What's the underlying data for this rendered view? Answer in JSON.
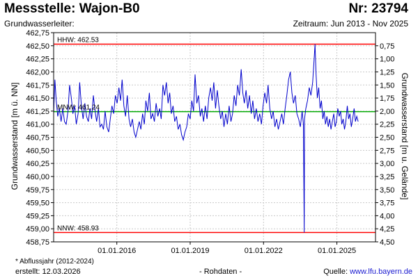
{
  "header": {
    "station": "Messstelle: Wajon-B0",
    "number": "Nr: 23794",
    "aquifer": "Grundwasserleiter:",
    "period": "Zeitraum: Jun 2013 - Nov 2025"
  },
  "footer": {
    "footnote": "* Abflussjahr (2012-2024)",
    "created": "erstellt:  12.03.2026",
    "raw": "- Rohdaten -",
    "source_prefix": "Quelle: ",
    "source_url": "www.lfu.bayern.de"
  },
  "colors": {
    "series": "#0000cc",
    "hhw": "#ff0000",
    "nnw": "#ff0000",
    "mnw": "#00aa00",
    "grid": "#c8c8c8"
  },
  "chart_data": {
    "type": "line",
    "ylabel": "Grundwasserstand [m ü. NN]",
    "ylabel_right": "Grundwasserstand [m u. Gelände]",
    "ylim": [
      458.75,
      462.75
    ],
    "xlim": [
      "2013-06-01",
      "2026-08-01"
    ],
    "yticks": [
      "462,75",
      "462,50",
      "462,25",
      "462,00",
      "461,75",
      "461,50",
      "461,25",
      "461,00",
      "460,75",
      "460,50",
      "460,25",
      "460,00",
      "459,75",
      "459,50",
      "459,25",
      "459,00",
      "458,75"
    ],
    "yticks_right": [
      "0,75",
      "1,00",
      "1,25",
      "1,50",
      "1,75",
      "2,00",
      "2,25",
      "2,50",
      "2,75",
      "3,00",
      "3,25",
      "3,50",
      "3,75",
      "4,00",
      "4,25",
      "4,50"
    ],
    "right_axis_zero_level": 463.25,
    "xticks": [
      {
        "date": "2016-01-01",
        "label": "01.01.2016"
      },
      {
        "date": "2019-01-01",
        "label": "01.01.2019"
      },
      {
        "date": "2022-01-01",
        "label": "01.01.2022"
      },
      {
        "date": "2025-01-01",
        "label": "01.01.2025"
      }
    ],
    "grid": true,
    "reference_lines": [
      {
        "key": "hhw",
        "label": "HHW: 462.53",
        "value": 462.53
      },
      {
        "key": "mnw",
        "label": "MNW: 461.24",
        "value": 461.24
      },
      {
        "key": "nnw",
        "label": "NNW: 458.93",
        "value": 458.93
      }
    ],
    "series": [
      {
        "points": [
          [
            "2013-06-01",
            461.2
          ],
          [
            "2013-06-20",
            461.85
          ],
          [
            "2013-07-10",
            461.45
          ],
          [
            "2013-08-01",
            461.15
          ],
          [
            "2013-08-25",
            461.3
          ],
          [
            "2013-09-20",
            461.05
          ],
          [
            "2013-10-15",
            461.3
          ],
          [
            "2013-11-10",
            461.05
          ],
          [
            "2013-12-05",
            461.0
          ],
          [
            "2014-01-01",
            461.25
          ],
          [
            "2014-01-25",
            461.75
          ],
          [
            "2014-02-20",
            461.5
          ],
          [
            "2014-03-15",
            461.2
          ],
          [
            "2014-04-10",
            461.35
          ],
          [
            "2014-05-05",
            461.0
          ],
          [
            "2014-06-01",
            461.2
          ],
          [
            "2014-06-25",
            461.8
          ],
          [
            "2014-07-20",
            461.35
          ],
          [
            "2014-08-15",
            461.1
          ],
          [
            "2014-09-10",
            461.4
          ],
          [
            "2014-10-05",
            461.15
          ],
          [
            "2014-11-01",
            461.05
          ],
          [
            "2014-11-25",
            461.3
          ],
          [
            "2014-12-20",
            461.1
          ],
          [
            "2015-01-15",
            461.55
          ],
          [
            "2015-02-10",
            461.25
          ],
          [
            "2015-03-05",
            461.05
          ],
          [
            "2015-04-01",
            461.3
          ],
          [
            "2015-04-25",
            460.95
          ],
          [
            "2015-05-20",
            461.0
          ],
          [
            "2015-06-15",
            460.9
          ],
          [
            "2015-07-10",
            461.25
          ],
          [
            "2015-08-05",
            460.95
          ],
          [
            "2015-09-01",
            460.85
          ],
          [
            "2015-09-25",
            461.1
          ],
          [
            "2015-10-20",
            461.35
          ],
          [
            "2015-11-15",
            461.2
          ],
          [
            "2015-12-10",
            461.55
          ],
          [
            "2016-01-05",
            461.4
          ],
          [
            "2016-02-01",
            461.7
          ],
          [
            "2016-02-25",
            461.45
          ],
          [
            "2016-03-20",
            461.85
          ],
          [
            "2016-04-15",
            461.35
          ],
          [
            "2016-05-10",
            461.15
          ],
          [
            "2016-06-05",
            461.55
          ],
          [
            "2016-07-01",
            461.1
          ],
          [
            "2016-07-25",
            460.95
          ],
          [
            "2016-08-20",
            461.1
          ],
          [
            "2016-09-15",
            460.85
          ],
          [
            "2016-10-10",
            460.75
          ],
          [
            "2016-11-05",
            460.9
          ],
          [
            "2016-12-01",
            461.05
          ],
          [
            "2016-12-25",
            460.9
          ],
          [
            "2017-01-20",
            461.2
          ],
          [
            "2017-02-15",
            461.0
          ],
          [
            "2017-03-10",
            461.45
          ],
          [
            "2017-04-05",
            461.25
          ],
          [
            "2017-05-01",
            461.6
          ],
          [
            "2017-05-25",
            461.1
          ],
          [
            "2017-06-20",
            461.2
          ],
          [
            "2017-07-15",
            461.05
          ],
          [
            "2017-08-10",
            461.4
          ],
          [
            "2017-09-05",
            461.15
          ],
          [
            "2017-10-01",
            461.3
          ],
          [
            "2017-10-25",
            461.1
          ],
          [
            "2017-11-20",
            461.75
          ],
          [
            "2017-12-15",
            461.55
          ],
          [
            "2018-01-10",
            461.8
          ],
          [
            "2018-02-05",
            461.4
          ],
          [
            "2018-03-01",
            461.6
          ],
          [
            "2018-03-25",
            461.2
          ],
          [
            "2018-04-20",
            461.35
          ],
          [
            "2018-05-15",
            461.05
          ],
          [
            "2018-06-10",
            461.15
          ],
          [
            "2018-07-05",
            460.9
          ],
          [
            "2018-08-01",
            461.0
          ],
          [
            "2018-08-25",
            460.8
          ],
          [
            "2018-09-20",
            460.7
          ],
          [
            "2018-10-15",
            460.85
          ],
          [
            "2018-11-10",
            460.95
          ],
          [
            "2018-12-05",
            461.2
          ],
          [
            "2019-01-01",
            461.1
          ],
          [
            "2019-01-25",
            461.45
          ],
          [
            "2019-02-20",
            461.25
          ],
          [
            "2019-03-15",
            461.95
          ],
          [
            "2019-04-10",
            461.4
          ],
          [
            "2019-05-05",
            461.55
          ],
          [
            "2019-06-01",
            461.15
          ],
          [
            "2019-06-25",
            461.3
          ],
          [
            "2019-07-20",
            461.05
          ],
          [
            "2019-08-15",
            461.35
          ],
          [
            "2019-09-10",
            461.1
          ],
          [
            "2019-10-05",
            461.5
          ],
          [
            "2019-11-01",
            461.7
          ],
          [
            "2019-11-25",
            461.45
          ],
          [
            "2019-12-20",
            461.8
          ],
          [
            "2020-01-15",
            461.3
          ],
          [
            "2020-02-10",
            461.65
          ],
          [
            "2020-03-05",
            461.35
          ],
          [
            "2020-04-01",
            461.1
          ],
          [
            "2020-04-25",
            461.25
          ],
          [
            "2020-05-20",
            460.95
          ],
          [
            "2020-06-15",
            461.2
          ],
          [
            "2020-07-10",
            461.0
          ],
          [
            "2020-08-05",
            461.35
          ],
          [
            "2020-09-01",
            461.05
          ],
          [
            "2020-09-25",
            461.2
          ],
          [
            "2020-10-20",
            461.55
          ],
          [
            "2020-11-15",
            461.35
          ],
          [
            "2020-12-10",
            461.75
          ],
          [
            "2021-01-05",
            461.55
          ],
          [
            "2021-02-01",
            462.05
          ],
          [
            "2021-02-25",
            461.6
          ],
          [
            "2021-03-20",
            461.4
          ],
          [
            "2021-04-15",
            461.65
          ],
          [
            "2021-05-10",
            461.3
          ],
          [
            "2021-06-05",
            461.55
          ],
          [
            "2021-07-01",
            461.2
          ],
          [
            "2021-07-25",
            461.45
          ],
          [
            "2021-08-20",
            461.1
          ],
          [
            "2021-09-15",
            461.3
          ],
          [
            "2021-10-10",
            461.05
          ],
          [
            "2021-11-05",
            461.2
          ],
          [
            "2021-12-01",
            461.0
          ],
          [
            "2021-12-25",
            461.35
          ],
          [
            "2022-01-20",
            461.6
          ],
          [
            "2022-02-15",
            461.4
          ],
          [
            "2022-03-10",
            461.75
          ],
          [
            "2022-04-05",
            461.3
          ],
          [
            "2022-05-01",
            461.1
          ],
          [
            "2022-05-25",
            461.25
          ],
          [
            "2022-06-20",
            460.95
          ],
          [
            "2022-07-15",
            461.1
          ],
          [
            "2022-08-10",
            460.9
          ],
          [
            "2022-09-05",
            461.05
          ],
          [
            "2022-10-01",
            461.2
          ],
          [
            "2022-10-25",
            461.0
          ],
          [
            "2022-11-20",
            461.3
          ],
          [
            "2022-12-15",
            461.55
          ],
          [
            "2023-01-10",
            461.85
          ],
          [
            "2023-02-05",
            462.0
          ],
          [
            "2023-03-01",
            461.6
          ],
          [
            "2023-03-25",
            461.4
          ],
          [
            "2023-04-20",
            461.55
          ],
          [
            "2023-05-15",
            461.2
          ],
          [
            "2023-06-10",
            461.1
          ],
          [
            "2023-07-05",
            460.95
          ],
          [
            "2023-08-01",
            461.25
          ],
          [
            "2023-08-20",
            461.0
          ],
          [
            "2023-09-01",
            458.93
          ],
          [
            "2023-09-05",
            461.1
          ],
          [
            "2023-09-25",
            461.3
          ],
          [
            "2023-10-20",
            461.45
          ],
          [
            "2023-11-15",
            461.7
          ],
          [
            "2023-12-10",
            461.55
          ],
          [
            "2024-01-05",
            461.8
          ],
          [
            "2024-01-25",
            462.2
          ],
          [
            "2024-02-10",
            462.53
          ],
          [
            "2024-02-25",
            461.95
          ],
          [
            "2024-03-15",
            461.5
          ],
          [
            "2024-04-05",
            461.7
          ],
          [
            "2024-04-25",
            461.3
          ],
          [
            "2024-05-15",
            461.45
          ],
          [
            "2024-06-05",
            461.1
          ],
          [
            "2024-06-25",
            461.25
          ],
          [
            "2024-07-15",
            461.0
          ],
          [
            "2024-08-05",
            461.15
          ],
          [
            "2024-08-25",
            460.95
          ],
          [
            "2024-09-15",
            461.1
          ],
          [
            "2024-10-05",
            460.9
          ],
          [
            "2024-10-25",
            461.05
          ],
          [
            "2024-11-15",
            461.2
          ],
          [
            "2024-12-05",
            460.95
          ],
          [
            "2024-12-25",
            461.05
          ],
          [
            "2025-01-15",
            461.3
          ],
          [
            "2025-02-05",
            461.15
          ],
          [
            "2025-02-25",
            461.25
          ],
          [
            "2025-03-15",
            461.0
          ],
          [
            "2025-04-05",
            461.1
          ],
          [
            "2025-04-25",
            460.9
          ],
          [
            "2025-05-15",
            461.05
          ],
          [
            "2025-06-05",
            461.35
          ],
          [
            "2025-06-25",
            461.1
          ],
          [
            "2025-07-15",
            461.2
          ],
          [
            "2025-08-05",
            460.95
          ],
          [
            "2025-08-25",
            461.1
          ],
          [
            "2025-09-15",
            461.3
          ],
          [
            "2025-10-05",
            461.05
          ],
          [
            "2025-10-25",
            461.15
          ],
          [
            "2025-11-15",
            461.05
          ]
        ]
      }
    ]
  }
}
